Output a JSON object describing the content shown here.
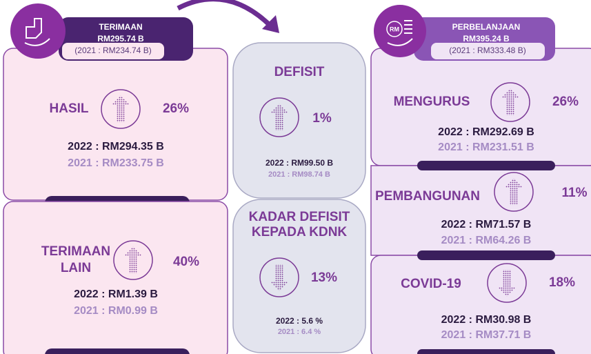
{
  "revenue": {
    "header": {
      "title": "TERIMAAN",
      "total": "RM295.74 B",
      "previous": "(2021 : RM234.74 B)"
    },
    "items": [
      {
        "label": [
          "HASIL"
        ],
        "change": "26%",
        "current": "2022 : RM294.35 B",
        "previous": "2021 : RM233.75 B"
      },
      {
        "label": [
          "TERIMAAN",
          "LAIN"
        ],
        "change": "40%",
        "current": "2022 : RM1.39 B",
        "previous": "2021 : RM0.99 B"
      }
    ]
  },
  "deficit": {
    "items": [
      {
        "label": [
          "DEFISIT"
        ],
        "change": "1%",
        "current": "2022 : RM99.50 B",
        "previous": "2021 : RM98.74 B"
      },
      {
        "label": [
          "KADAR DEFISIT",
          "KEPADA KDNK"
        ],
        "change": "13%",
        "current": "2022 : 5.6 %",
        "previous": "2021 : 6.4 %"
      }
    ]
  },
  "expenditure": {
    "header": {
      "title": "PERBELANJAAN",
      "total": "RM395.24 B",
      "previous": "(2021 : RM333.48 B)",
      "icon": "RM"
    },
    "items": [
      {
        "label": [
          "MENGURUS"
        ],
        "change": "26%",
        "current": "2022 : RM292.69 B",
        "previous": "2021 : RM231.51 B"
      },
      {
        "label": [
          "PEMBANGUNAN"
        ],
        "change": "11%",
        "current": "2022 : RM71.57 B",
        "previous": "2021 : RM64.26 B"
      },
      {
        "label": [
          "COVID-19"
        ],
        "change": "18%",
        "current": "2022 : RM30.98 B",
        "previous": "2021 : RM37.71 B"
      }
    ]
  }
}
